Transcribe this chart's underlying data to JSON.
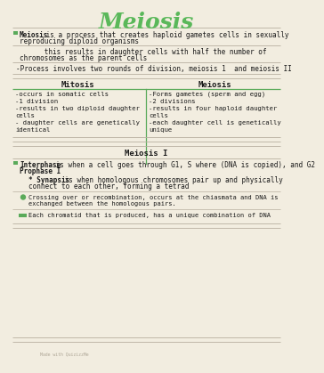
{
  "title": "Meiosis",
  "bg_color": "#f2ede0",
  "line_color": "#b8b0a0",
  "green_color": "#5aaa5a",
  "text_color": "#1a1a1a",
  "title_color": "#5ab85a",
  "intro_bold": "Meiosis",
  "intro_line1": " is a process that creates haploid gametes cells in sexually",
  "intro_line2": "reproducing diploid organisms",
  "line2a": "      this results in daughter cells with half the number of",
  "line2b": "chromosomes as the parent cells",
  "line3": "-Process involves two rounds of division, meiosis 1  and meiosis II",
  "col1_header": "Mitosis",
  "col2_header": "Meiosis",
  "col1_lines": [
    "-occurs in somatic cells",
    "-1 division",
    "-results in two diploid daughter",
    "cells",
    "- daughter cells are genetically",
    "identical"
  ],
  "col2_lines": [
    "-Forms gametes (sperm and egg)",
    "-2 divisions",
    "-results in four haploid daughter",
    "cells",
    "-each daughter cell is genetically",
    "unique"
  ],
  "meiosis1_header": "Meiosis I",
  "interphase_bold": "Interphase",
  "interphase_rest": " is when a cell goes through G1, S where (DNA is copied), and G2",
  "prophase": "Prophase I",
  "synapsis_bold": "* Synapsis",
  "synapsis_rest": " is when homologous chromosomes pair up and physically",
  "synapsis_line2": "connect to each other, forming a tetrad",
  "crossing_line1": "Crossing over or recombination, occurs at the chiasmata and DNA is",
  "crossing_line2": "exchanged between the homologous pairs.",
  "chromatid_text": "Each chromatid that is produced, has a unique combination of DNA",
  "watermark": "Made with QuizizzMe"
}
